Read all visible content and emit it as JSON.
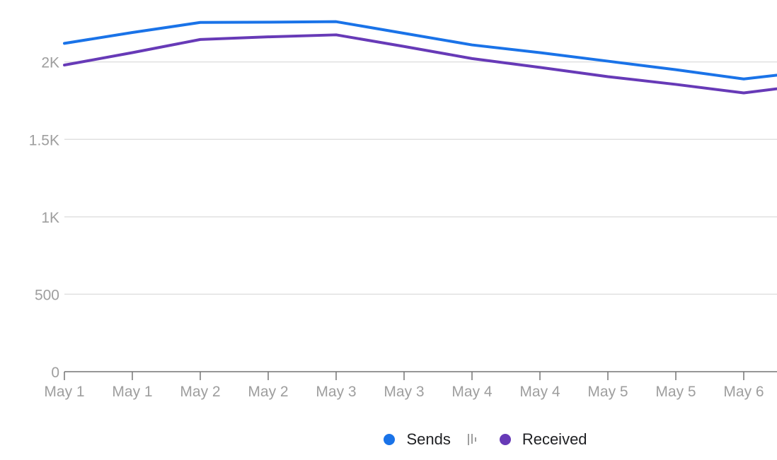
{
  "chart_data": {
    "type": "line",
    "categories": [
      "May 1",
      "May 1",
      "May 2",
      "May 2",
      "May 3",
      "May 3",
      "May 4",
      "May 4",
      "May 5",
      "May 5",
      "May 6",
      ""
    ],
    "series": [
      {
        "name": "Sends",
        "color": "#1a73e8",
        "values": [
          2120,
          2190,
          2255,
          2257,
          2260,
          2185,
          2110,
          2060,
          2005,
          1950,
          1890,
          1940
        ]
      },
      {
        "name": "Received",
        "color": "#673ab7",
        "values": [
          1980,
          2060,
          2145,
          2162,
          2175,
          2100,
          2022,
          1965,
          1905,
          1855,
          1800,
          1855
        ]
      }
    ],
    "yticks": [
      "0",
      "500",
      "1K",
      "1.5K",
      "2K"
    ],
    "ytick_values": [
      0,
      500,
      1000,
      1500,
      2000
    ],
    "ylim": [
      0,
      2400
    ],
    "title": "",
    "xlabel": "",
    "ylabel": "",
    "grid": true,
    "legend_position": "bottom-center"
  }
}
